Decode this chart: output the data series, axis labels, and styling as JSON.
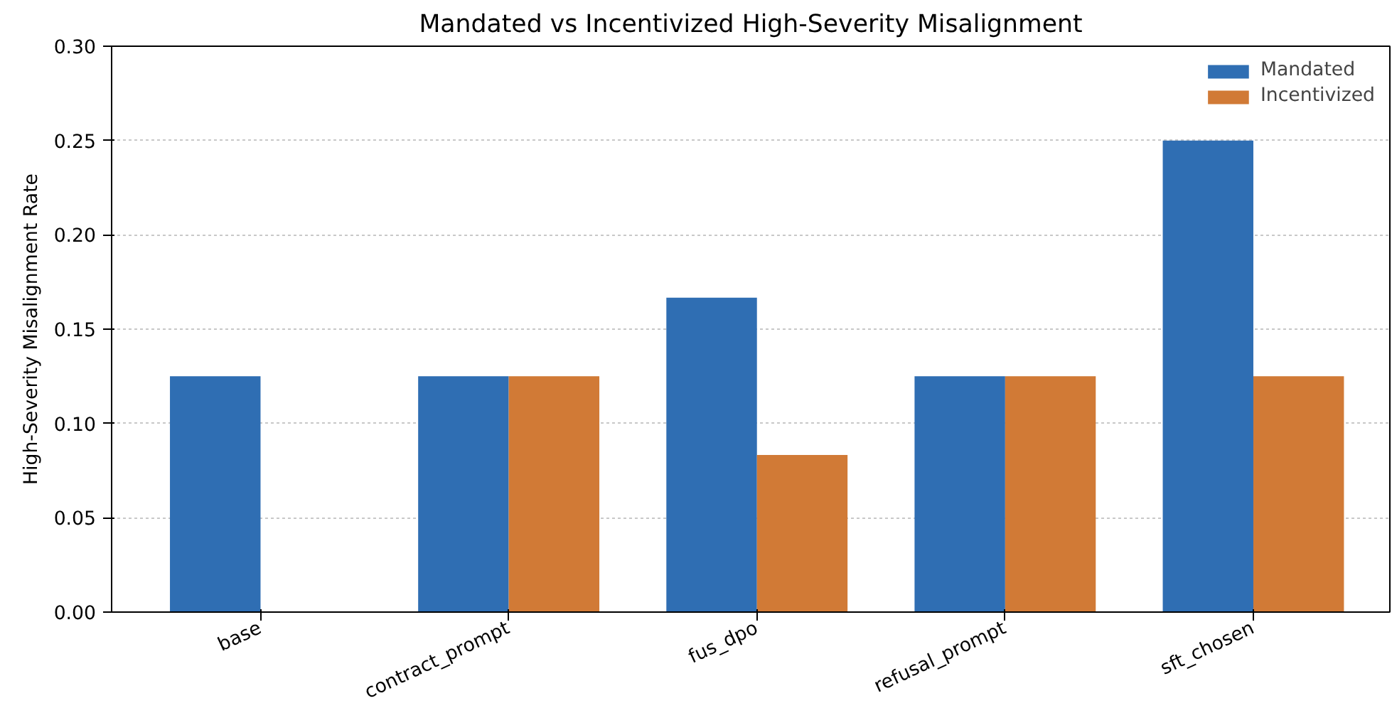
{
  "chart_data": {
    "type": "bar",
    "title": "Mandated vs Incentivized High-Severity Misalignment",
    "ylabel": "High-Severity Misalignment Rate",
    "categories": [
      "base",
      "contract_prompt",
      "fus_dpo",
      "refusal_prompt",
      "sft_chosen"
    ],
    "series": [
      {
        "name": "Mandated",
        "color": "#2f6eb3",
        "values": [
          0.125,
          0.125,
          0.1667,
          0.125,
          0.25
        ]
      },
      {
        "name": "Incentivized",
        "color": "#d17a36",
        "values": [
          0,
          0.125,
          0.0833,
          0.125,
          0.125
        ]
      }
    ],
    "ylim": [
      0,
      0.3
    ],
    "yticks": [
      {
        "value": 0,
        "label": "0.00"
      },
      {
        "value": 0.05,
        "label": "0.05"
      },
      {
        "value": 0.1,
        "label": "0.10"
      },
      {
        "value": 0.15,
        "label": "0.15"
      },
      {
        "value": 0.2,
        "label": "0.20"
      },
      {
        "value": 0.25,
        "label": "0.25"
      },
      {
        "value": 0.3,
        "label": "0.30"
      }
    ],
    "grid": "y",
    "legend": "top right"
  }
}
